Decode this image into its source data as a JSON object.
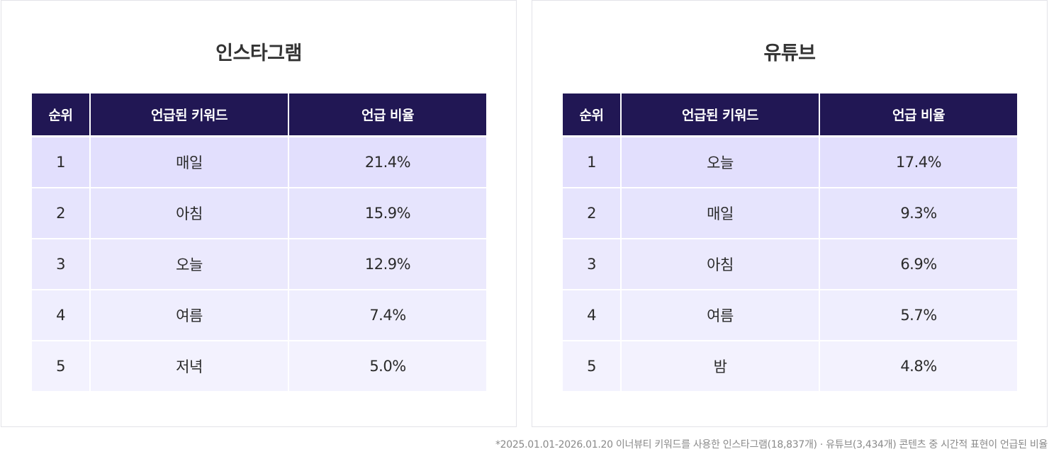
{
  "instagram": {
    "title": "인스타그램",
    "headers": [
      "순위",
      "언급된 키워드",
      "언급 비율"
    ],
    "rows": [
      {
        "rank": "1",
        "keyword": "매일",
        "ratio": "21.4%"
      },
      {
        "rank": "2",
        "keyword": "아침",
        "ratio": "15.9%"
      },
      {
        "rank": "3",
        "keyword": "오늘",
        "ratio": "12.9%"
      },
      {
        "rank": "4",
        "keyword": "여름",
        "ratio": "7.4%"
      },
      {
        "rank": "5",
        "keyword": "저녁",
        "ratio": "5.0%"
      }
    ]
  },
  "youtube": {
    "title": "유튜브",
    "headers": [
      "순위",
      "언급된 키워드",
      "언급 비율"
    ],
    "rows": [
      {
        "rank": "1",
        "keyword": "오늘",
        "ratio": "17.4%"
      },
      {
        "rank": "2",
        "keyword": "매일",
        "ratio": "9.3%"
      },
      {
        "rank": "3",
        "keyword": "아침",
        "ratio": "6.9%"
      },
      {
        "rank": "4",
        "keyword": "여름",
        "ratio": "5.7%"
      },
      {
        "rank": "5",
        "keyword": "밤",
        "ratio": "4.8%"
      }
    ]
  },
  "footnote": "*2025.01.01-2026.01.20 이너뷰티 키워드를 사용한 인스타그램(18,837개) · 유튜브(3,434개) 콘텐츠 중 시간적 표현이 언급된 비율",
  "colors": {
    "header_bg": "#211754",
    "row_bg": [
      "#e2dffd",
      "#e6e4fd",
      "#ebe9fd",
      "#efeefe",
      "#f3f2fe"
    ],
    "panel_border": "#e3e3e8",
    "footnote_text": "#8a8a8a"
  }
}
